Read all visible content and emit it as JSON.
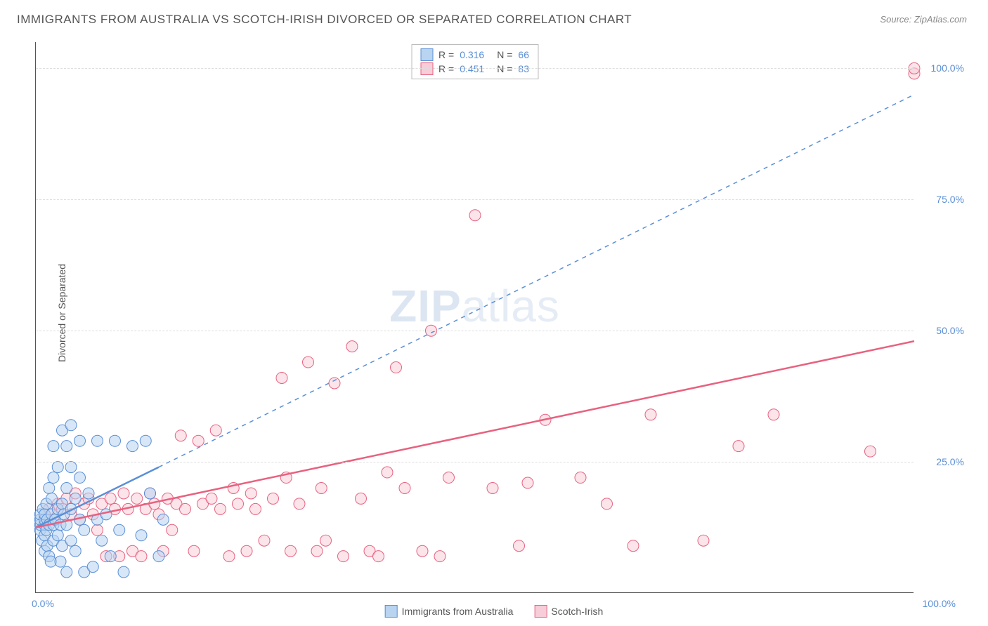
{
  "title": "IMMIGRANTS FROM AUSTRALIA VS SCOTCH-IRISH DIVORCED OR SEPARATED CORRELATION CHART",
  "source_label": "Source: ZipAtlas.com",
  "ylabel": "Divorced or Separated",
  "watermark_bold": "ZIP",
  "watermark_light": "atlas",
  "chart": {
    "type": "scatter",
    "xlim": [
      0,
      100
    ],
    "ylim": [
      0,
      105
    ],
    "background_color": "#ffffff",
    "grid_color": "#dddddd",
    "axis_color": "#555555",
    "tick_color": "#5a8fd6",
    "tick_fontsize": 14,
    "yticks": [
      {
        "v": 25,
        "label": "25.0%"
      },
      {
        "v": 50,
        "label": "50.0%"
      },
      {
        "v": 75,
        "label": "75.0%"
      },
      {
        "v": 100,
        "label": "100.0%"
      }
    ],
    "xticks": [
      {
        "v": 0,
        "label": "0.0%",
        "align": "left"
      },
      {
        "v": 100,
        "label": "100.0%",
        "align": "right"
      }
    ],
    "marker_radius": 8,
    "marker_opacity": 0.55,
    "series_a": {
      "name": "Immigrants from Australia",
      "color_fill": "#b8d4f0",
      "color_stroke": "#5a8fd6",
      "r_value": "0.316",
      "n_value": "66",
      "trend": {
        "x1": 0,
        "y1": 12.5,
        "x2": 14,
        "y2": 24,
        "extend_x2": 100,
        "extend_y2": 95,
        "solid_width": 2.5,
        "dash_width": 1.5
      },
      "points": [
        [
          0.5,
          12
        ],
        [
          0.5,
          13
        ],
        [
          0.5,
          14
        ],
        [
          0.5,
          15
        ],
        [
          0.7,
          10
        ],
        [
          0.8,
          16
        ],
        [
          1.0,
          8
        ],
        [
          1.0,
          11
        ],
        [
          1.0,
          13
        ],
        [
          1.0,
          14
        ],
        [
          1.0,
          15
        ],
        [
          1.2,
          12
        ],
        [
          1.2,
          17
        ],
        [
          1.3,
          9
        ],
        [
          1.3,
          14
        ],
        [
          1.5,
          7
        ],
        [
          1.5,
          13
        ],
        [
          1.5,
          20
        ],
        [
          1.7,
          6
        ],
        [
          1.8,
          15
        ],
        [
          1.8,
          18
        ],
        [
          2.0,
          10
        ],
        [
          2.0,
          13
        ],
        [
          2.0,
          22
        ],
        [
          2.0,
          28
        ],
        [
          2.2,
          14
        ],
        [
          2.5,
          11
        ],
        [
          2.5,
          16
        ],
        [
          2.5,
          24
        ],
        [
          2.8,
          6
        ],
        [
          2.8,
          13
        ],
        [
          3.0,
          9
        ],
        [
          3.0,
          17
        ],
        [
          3.0,
          31
        ],
        [
          3.2,
          15
        ],
        [
          3.5,
          4
        ],
        [
          3.5,
          13
        ],
        [
          3.5,
          20
        ],
        [
          3.5,
          28
        ],
        [
          4.0,
          10
        ],
        [
          4.0,
          16
        ],
        [
          4.0,
          24
        ],
        [
          4.0,
          32
        ],
        [
          4.5,
          8
        ],
        [
          4.5,
          18
        ],
        [
          5.0,
          14
        ],
        [
          5.0,
          22
        ],
        [
          5.0,
          29
        ],
        [
          5.5,
          4
        ],
        [
          5.5,
          12
        ],
        [
          6.0,
          19
        ],
        [
          6.5,
          5
        ],
        [
          7.0,
          14
        ],
        [
          7.0,
          29
        ],
        [
          7.5,
          10
        ],
        [
          8.0,
          15
        ],
        [
          8.5,
          7
        ],
        [
          9.0,
          29
        ],
        [
          9.5,
          12
        ],
        [
          10.0,
          4
        ],
        [
          11.0,
          28
        ],
        [
          12.0,
          11
        ],
        [
          12.5,
          29
        ],
        [
          13.0,
          19
        ],
        [
          14.0,
          7
        ],
        [
          14.5,
          14
        ]
      ]
    },
    "series_b": {
      "name": "Scotch-Irish",
      "color_fill": "#f7cdd9",
      "color_stroke": "#e8617f",
      "r_value": "0.451",
      "n_value": "83",
      "trend": {
        "x1": 0,
        "y1": 12.5,
        "x2": 100,
        "y2": 48,
        "solid_width": 2.5
      },
      "points": [
        [
          1.0,
          15
        ],
        [
          1.5,
          16
        ],
        [
          2.0,
          14
        ],
        [
          2.5,
          17
        ],
        [
          3.0,
          16
        ],
        [
          3.5,
          18
        ],
        [
          4.0,
          15
        ],
        [
          4.5,
          19
        ],
        [
          5.0,
          14
        ],
        [
          5.5,
          17
        ],
        [
          6.0,
          18
        ],
        [
          6.5,
          15
        ],
        [
          7.0,
          12
        ],
        [
          7.5,
          17
        ],
        [
          8.0,
          7
        ],
        [
          8.5,
          18
        ],
        [
          9.0,
          16
        ],
        [
          9.5,
          7
        ],
        [
          10.0,
          19
        ],
        [
          10.5,
          16
        ],
        [
          11.0,
          8
        ],
        [
          11.5,
          18
        ],
        [
          12.0,
          7
        ],
        [
          12.5,
          16
        ],
        [
          13.0,
          19
        ],
        [
          13.5,
          17
        ],
        [
          14.0,
          15
        ],
        [
          14.5,
          8
        ],
        [
          15.0,
          18
        ],
        [
          15.5,
          12
        ],
        [
          16.0,
          17
        ],
        [
          16.5,
          30
        ],
        [
          17.0,
          16
        ],
        [
          18.0,
          8
        ],
        [
          18.5,
          29
        ],
        [
          19.0,
          17
        ],
        [
          20.0,
          18
        ],
        [
          20.5,
          31
        ],
        [
          21.0,
          16
        ],
        [
          22.0,
          7
        ],
        [
          22.5,
          20
        ],
        [
          23.0,
          17
        ],
        [
          24.0,
          8
        ],
        [
          24.5,
          19
        ],
        [
          25.0,
          16
        ],
        [
          26.0,
          10
        ],
        [
          27.0,
          18
        ],
        [
          28.0,
          41
        ],
        [
          28.5,
          22
        ],
        [
          29.0,
          8
        ],
        [
          30.0,
          17
        ],
        [
          31.0,
          44
        ],
        [
          32.0,
          8
        ],
        [
          32.5,
          20
        ],
        [
          33.0,
          10
        ],
        [
          34.0,
          40
        ],
        [
          35.0,
          7
        ],
        [
          36.0,
          47
        ],
        [
          37.0,
          18
        ],
        [
          38.0,
          8
        ],
        [
          39.0,
          7
        ],
        [
          40.0,
          23
        ],
        [
          41.0,
          43
        ],
        [
          42.0,
          20
        ],
        [
          44.0,
          8
        ],
        [
          45.0,
          50
        ],
        [
          46.0,
          7
        ],
        [
          47.0,
          22
        ],
        [
          50.0,
          72
        ],
        [
          52.0,
          20
        ],
        [
          55.0,
          9
        ],
        [
          56.0,
          21
        ],
        [
          58.0,
          33
        ],
        [
          62.0,
          22
        ],
        [
          65.0,
          17
        ],
        [
          68.0,
          9
        ],
        [
          70.0,
          34
        ],
        [
          76.0,
          10
        ],
        [
          80.0,
          28
        ],
        [
          84.0,
          34
        ],
        [
          95.0,
          27
        ],
        [
          100.0,
          99
        ],
        [
          100.0,
          100
        ]
      ]
    }
  },
  "legend_top": {
    "r_prefix": "R =",
    "n_prefix": "N ="
  },
  "legend_bottom": {
    "label_a": "Immigrants from Australia",
    "label_b": "Scotch-Irish"
  }
}
